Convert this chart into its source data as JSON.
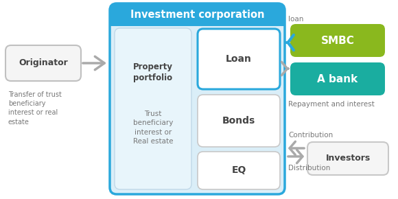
{
  "title": "Investment corporation",
  "title_color": "#ffffff",
  "title_bg": "#2aa8dc",
  "outer_bg": "#daeef8",
  "outer_edge": "#2aa8dc",
  "white": "#ffffff",
  "gray_box_bg": "#f5f5f5",
  "gray_box_edge": "#c8c8c8",
  "blue_box_edge": "#2aa8dc",
  "smbc_color": "#8ab81e",
  "abank_color": "#1aada0",
  "investors_bg": "#f5f5f5",
  "investors_edge": "#c8c8c8",
  "orig_bg": "#f5f5f5",
  "orig_edge": "#c0c0c0",
  "prop_bg": "#e8f5fb",
  "prop_edge": "#c0d8e8",
  "text_dark": "#444444",
  "text_gray": "#777777",
  "blue_arrow": "#2aa8dc",
  "gray_arrow": "#aaaaaa",
  "label_transfer": "Transfer of trust\nbeneficiary\ninterest or real\nestate",
  "label_loan_txt": "loan",
  "label_repayment": "Repayment and interest",
  "label_contribution": "Contribution",
  "label_distribution": "Distribution"
}
